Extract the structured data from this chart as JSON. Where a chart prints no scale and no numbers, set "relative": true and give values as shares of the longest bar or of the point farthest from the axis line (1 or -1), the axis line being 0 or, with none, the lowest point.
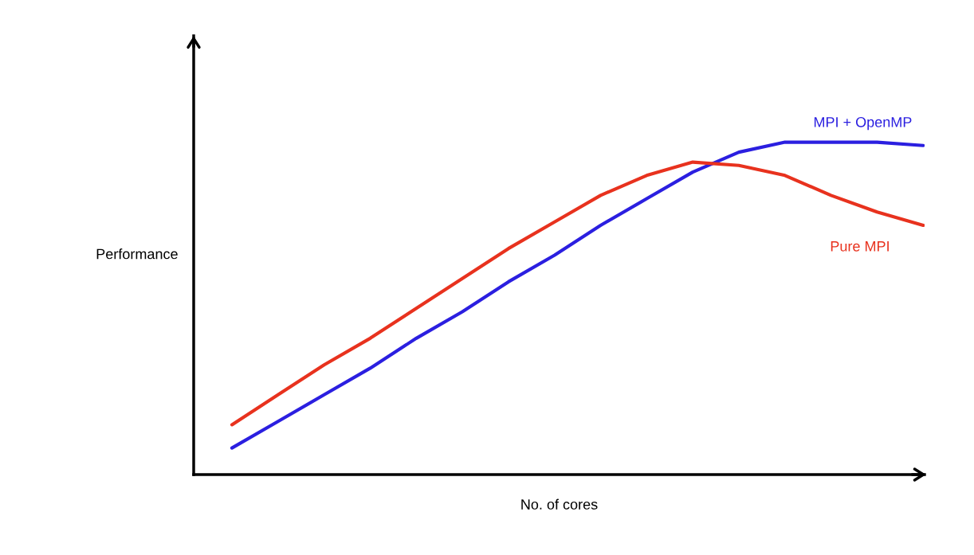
{
  "chart_data": {
    "type": "line",
    "relative": true,
    "xlabel": "No. of cores",
    "ylabel": "Performance",
    "legend": false,
    "marker": "none",
    "line_style": "solid",
    "categories": [
      null,
      null,
      null,
      null,
      null,
      null,
      null,
      null,
      null,
      null,
      null,
      null,
      null,
      null,
      null,
      null
    ],
    "series": [
      {
        "name": "MPI + OpenMP",
        "color": "#2b1fe0",
        "values": [
          0.08,
          0.16,
          0.24,
          0.32,
          0.41,
          0.49,
          0.58,
          0.66,
          0.75,
          0.83,
          0.91,
          0.97,
          1.0,
          1.0,
          1.0,
          0.99
        ]
      },
      {
        "name": "Pure MPI",
        "color": "#e8321e",
        "values": [
          0.15,
          0.24,
          0.33,
          0.41,
          0.5,
          0.59,
          0.68,
          0.76,
          0.84,
          0.9,
          0.94,
          0.93,
          0.9,
          0.84,
          0.79,
          0.75
        ]
      }
    ]
  }
}
